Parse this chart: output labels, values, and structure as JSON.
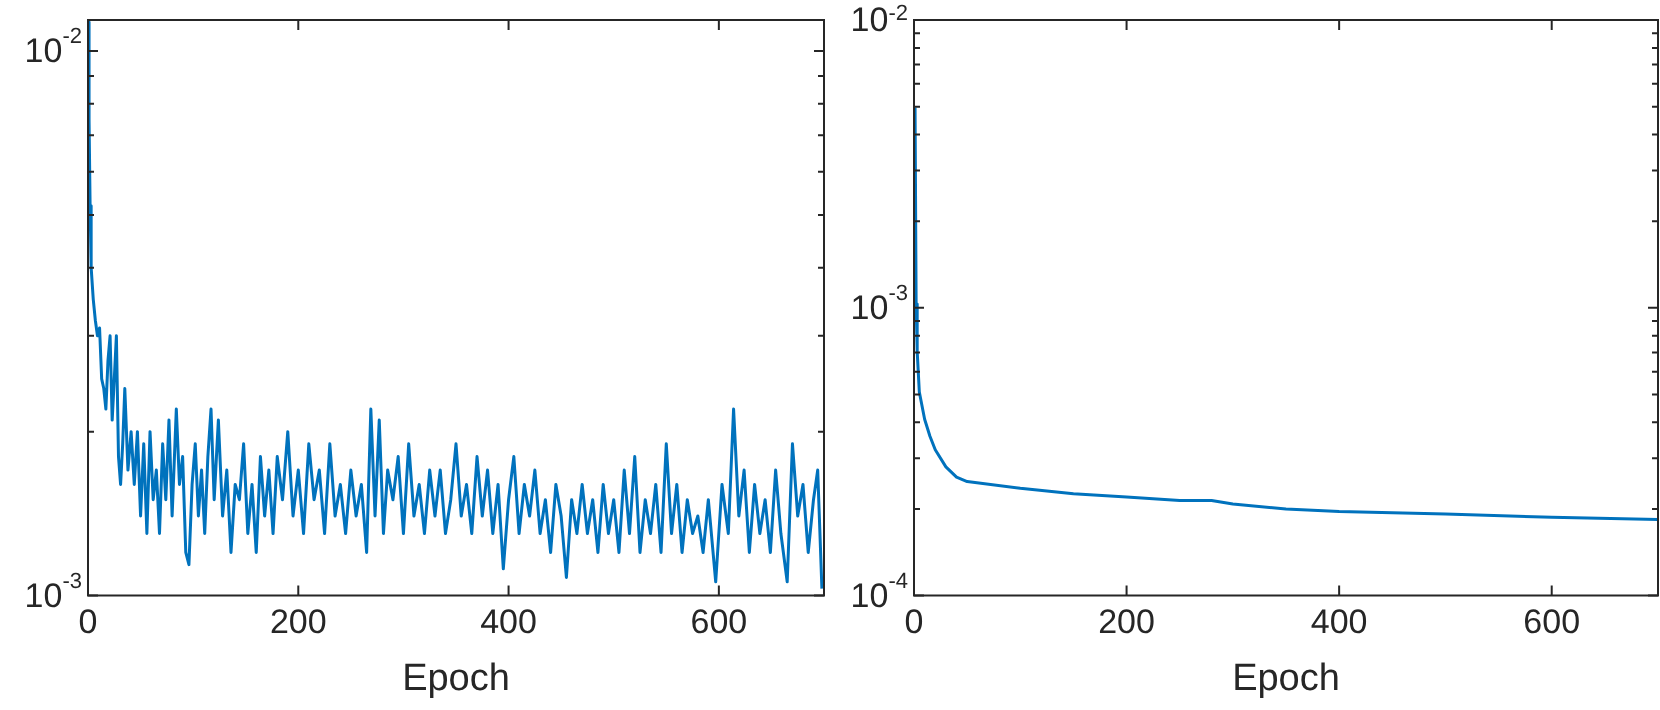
{
  "chart_data": [
    {
      "type": "line",
      "xlabel": "Epoch",
      "log": "y",
      "grid": false,
      "marker": "none",
      "line_style": "solid",
      "xlim": [
        0,
        700
      ],
      "xticks": [
        0,
        200,
        400,
        600
      ],
      "ylim": [
        0.001,
        0.0114
      ],
      "yticks": [
        {
          "value": 0.001,
          "label": "10$^{-3}$"
        },
        {
          "value": 0.002,
          "label": null
        },
        {
          "value": 0.003,
          "label": null
        },
        {
          "value": 0.004,
          "label": null
        },
        {
          "value": 0.005,
          "label": null
        },
        {
          "value": 0.006,
          "label": null
        },
        {
          "value": 0.007,
          "label": null
        },
        {
          "value": 0.008,
          "label": null
        },
        {
          "value": 0.009,
          "label": null
        },
        {
          "value": 0.01,
          "label": "10$^{-2}$"
        }
      ],
      "series": [
        {
          "color": "#0072bd",
          "x": [
            0,
            1,
            2,
            3,
            5,
            7,
            9,
            11,
            13,
            15,
            17,
            19,
            21,
            23,
            25,
            27,
            29,
            31,
            33,
            35,
            38,
            41,
            44,
            47,
            50,
            53,
            56,
            59,
            62,
            65,
            68,
            71,
            74,
            77,
            80,
            84,
            87,
            90,
            93,
            96,
            99,
            102,
            105,
            108,
            111,
            114,
            117,
            120,
            124,
            128,
            132,
            136,
            140,
            144,
            148,
            152,
            156,
            160,
            164,
            168,
            172,
            176,
            180,
            185,
            190,
            195,
            200,
            205,
            210,
            215,
            220,
            225,
            230,
            235,
            240,
            245,
            250,
            255,
            260,
            265,
            269,
            273,
            277,
            281,
            285,
            290,
            295,
            300,
            305,
            310,
            315,
            320,
            325,
            330,
            335,
            340,
            345,
            350,
            355,
            360,
            365,
            370,
            375,
            380,
            385,
            390,
            395,
            400,
            405,
            410,
            415,
            420,
            425,
            430,
            435,
            440,
            445,
            450,
            455,
            460,
            465,
            470,
            475,
            480,
            485,
            490,
            495,
            500,
            505,
            510,
            515,
            520,
            525,
            530,
            535,
            540,
            545,
            550,
            555,
            560,
            565,
            570,
            575,
            580,
            585,
            590,
            597,
            603,
            609,
            614,
            619,
            624,
            629,
            634,
            639,
            644,
            649,
            654,
            659,
            665,
            670,
            675,
            680,
            685,
            690,
            694,
            698
          ],
          "values": [
            0.0113,
            0.0075,
            0.0052,
            0.004,
            0.0035,
            0.0032,
            0.003,
            0.0031,
            0.0025,
            0.0024,
            0.0022,
            0.0027,
            0.003,
            0.0021,
            0.0025,
            0.003,
            0.0018,
            0.0016,
            0.0019,
            0.0024,
            0.0017,
            0.002,
            0.0016,
            0.002,
            0.0014,
            0.0019,
            0.0013,
            0.002,
            0.0015,
            0.0017,
            0.0013,
            0.0019,
            0.0015,
            0.0021,
            0.0014,
            0.0022,
            0.0016,
            0.0018,
            0.0012,
            0.00114,
            0.0016,
            0.0019,
            0.0014,
            0.0017,
            0.0013,
            0.0018,
            0.0022,
            0.0015,
            0.0021,
            0.0014,
            0.0017,
            0.0012,
            0.0016,
            0.0015,
            0.0019,
            0.0013,
            0.0016,
            0.0012,
            0.0018,
            0.0014,
            0.0017,
            0.0013,
            0.0018,
            0.0015,
            0.002,
            0.0014,
            0.0017,
            0.0013,
            0.0019,
            0.0015,
            0.0017,
            0.0013,
            0.0019,
            0.0014,
            0.0016,
            0.0013,
            0.0017,
            0.0014,
            0.0016,
            0.0012,
            0.0022,
            0.0014,
            0.0021,
            0.0013,
            0.0017,
            0.0015,
            0.0018,
            0.0013,
            0.0019,
            0.0014,
            0.0016,
            0.0013,
            0.0017,
            0.0014,
            0.0017,
            0.0013,
            0.0015,
            0.0019,
            0.0014,
            0.0016,
            0.0013,
            0.0018,
            0.0014,
            0.0017,
            0.0013,
            0.0016,
            0.00112,
            0.0015,
            0.0018,
            0.0013,
            0.0016,
            0.0014,
            0.0017,
            0.0013,
            0.0015,
            0.0012,
            0.0016,
            0.0014,
            0.00108,
            0.0015,
            0.0013,
            0.0016,
            0.0013,
            0.0015,
            0.0012,
            0.0016,
            0.0013,
            0.0015,
            0.0012,
            0.0017,
            0.0013,
            0.0018,
            0.0012,
            0.0015,
            0.0013,
            0.0016,
            0.0012,
            0.0019,
            0.0013,
            0.0016,
            0.0012,
            0.0015,
            0.0013,
            0.0014,
            0.0012,
            0.0015,
            0.00106,
            0.0016,
            0.0013,
            0.0022,
            0.0014,
            0.0017,
            0.0012,
            0.0016,
            0.0013,
            0.0015,
            0.0012,
            0.0017,
            0.0013,
            0.00106,
            0.0019,
            0.0014,
            0.0016,
            0.0012,
            0.0015,
            0.0017,
            0.00103
          ]
        }
      ]
    },
    {
      "type": "line",
      "xlabel": "Epoch",
      "log": "y",
      "grid": false,
      "marker": "none",
      "line_style": "solid",
      "xlim": [
        0,
        700
      ],
      "xticks": [
        0,
        200,
        400,
        600
      ],
      "ylim": [
        0.0001,
        0.01
      ],
      "yticks": [
        {
          "value": 0.0001,
          "label": "10$^{-4}$"
        },
        {
          "value": 0.0002,
          "label": null
        },
        {
          "value": 0.0003,
          "label": null
        },
        {
          "value": 0.0004,
          "label": null
        },
        {
          "value": 0.0005,
          "label": null
        },
        {
          "value": 0.0006,
          "label": null
        },
        {
          "value": 0.0007,
          "label": null
        },
        {
          "value": 0.0008,
          "label": null
        },
        {
          "value": 0.0009,
          "label": null
        },
        {
          "value": 0.001,
          "label": "10$^{-3}$"
        },
        {
          "value": 0.002,
          "label": null
        },
        {
          "value": 0.003,
          "label": null
        },
        {
          "value": 0.004,
          "label": null
        },
        {
          "value": 0.005,
          "label": null
        },
        {
          "value": 0.006,
          "label": null
        },
        {
          "value": 0.007,
          "label": null
        },
        {
          "value": 0.008,
          "label": null
        },
        {
          "value": 0.009,
          "label": null
        },
        {
          "value": 0.01,
          "label": "10$^{-2}$"
        }
      ],
      "series": [
        {
          "color": "#0072bd",
          "x": [
            1,
            2,
            3,
            5,
            10,
            15,
            20,
            30,
            40,
            50,
            100,
            150,
            200,
            250,
            280,
            300,
            350,
            400,
            500,
            600,
            700
          ],
          "values": [
            0.00497,
            0.00103,
            0.000706,
            0.00051,
            0.00041,
            0.000358,
            0.000321,
            0.00028,
            0.000258,
            0.000249,
            0.000236,
            0.000226,
            0.00022,
            0.000214,
            0.000214,
            0.000208,
            0.0002,
            0.000196,
            0.000192,
            0.000187,
            0.000184
          ]
        }
      ]
    }
  ]
}
